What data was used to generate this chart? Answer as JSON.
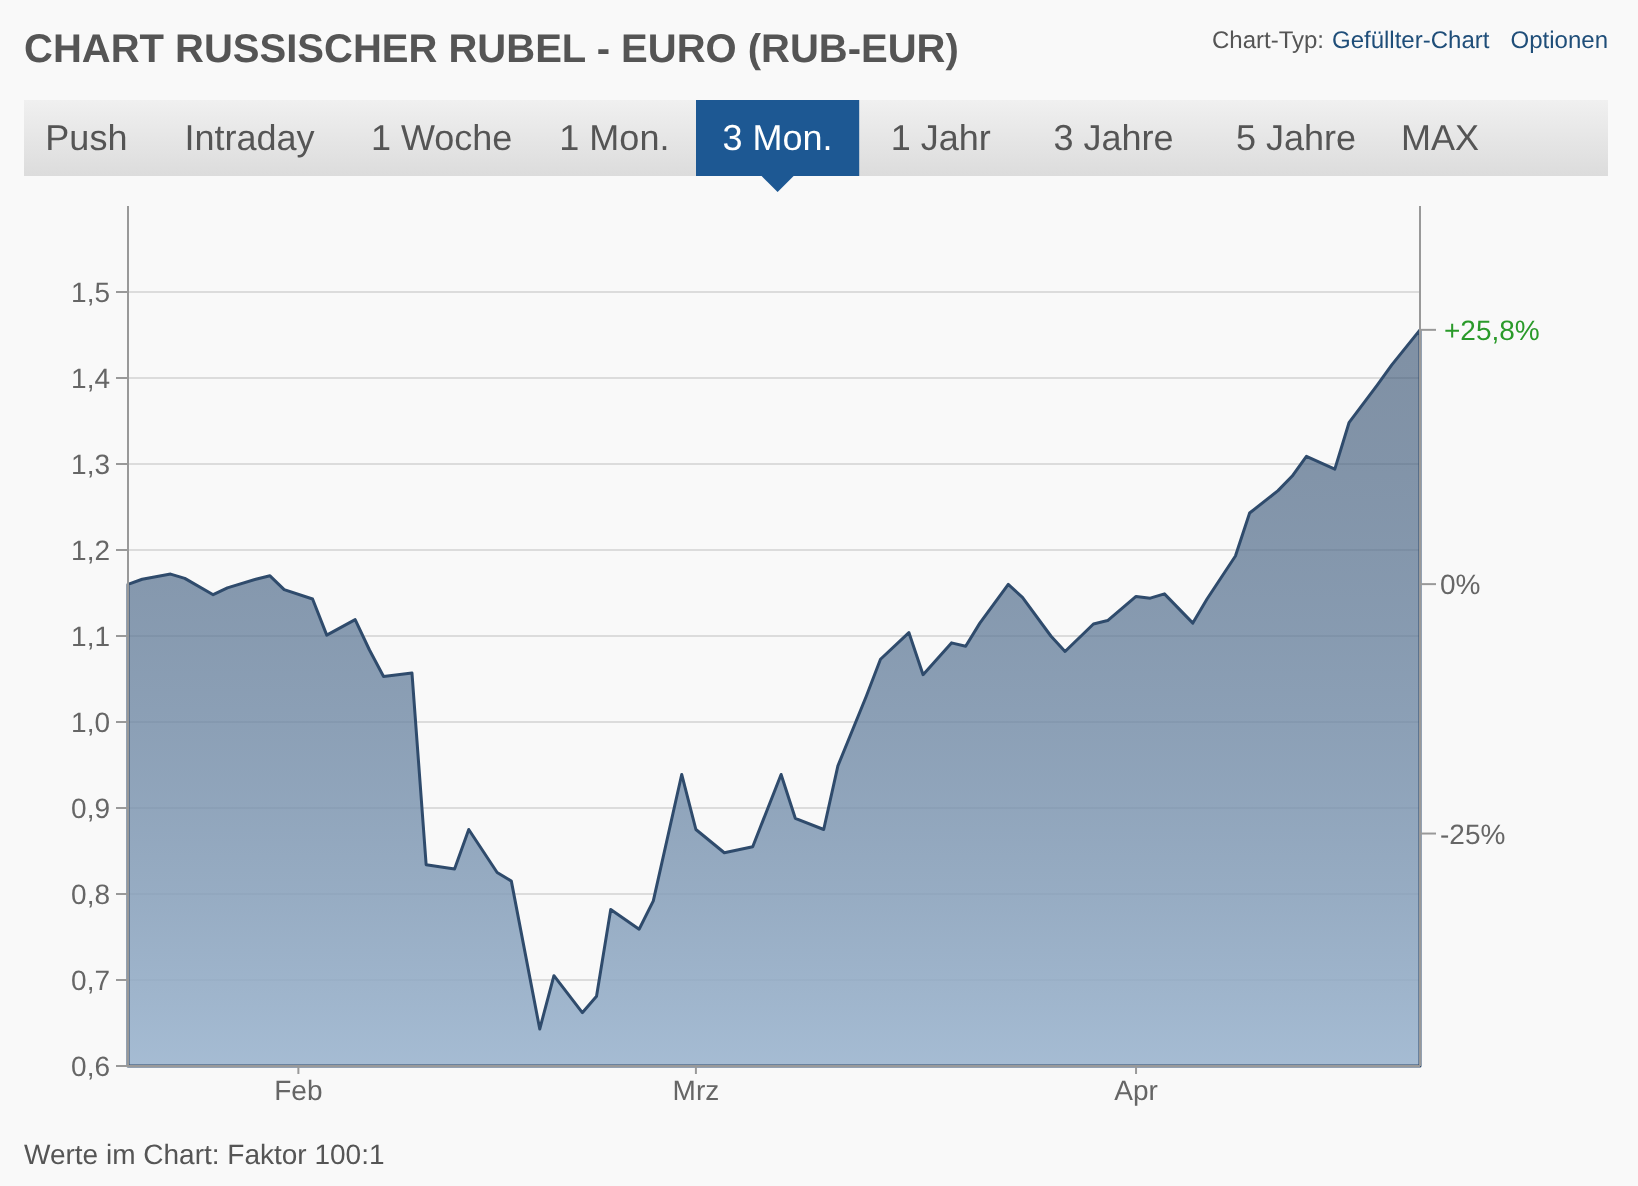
{
  "chart_data": {
    "type": "area",
    "title": "CHART RUSSISCHER RUBEL - EURO (RUB-EUR)",
    "annotations": [
      "Chart-Typ:",
      "Gefüllter-Chart",
      "Optionen",
      "Push",
      "Intraday",
      "1 Woche",
      "1 Mon.",
      "3 Mon.",
      "1 Jahr",
      "3 Jahre",
      "5 Jahre",
      "MAX",
      "Werte im Chart: Faktor 100:1",
      {
        "text": "+25,8%",
        "x": "--05-05",
        "y": 1.456
      }
    ],
    "x": [
      "--02-03",
      "--02-04",
      "--02-06",
      "--02-07",
      "--02-09",
      "--02-10",
      "--02-12",
      "--02-13",
      "--02-14",
      "--02-16",
      "--02-17",
      "--02-19",
      "--02-20",
      "--02-21",
      "--02-23",
      "--02-24",
      "--02-26",
      "--02-27",
      "--03-01",
      "--03-02",
      "--03-04",
      "--03-05",
      "--03-07",
      "--03-08",
      "--03-09",
      "--03-11",
      "--03-12",
      "--03-14",
      "--03-15",
      "--03-17",
      "--03-19",
      "--03-21",
      "--03-22",
      "--03-24",
      "--03-25",
      "--03-27",
      "--03-28",
      "--03-30",
      "--03-31",
      "--04-02",
      "--04-03",
      "--04-04",
      "--04-06",
      "--04-07",
      "--04-09",
      "--04-10",
      "--04-12",
      "--04-13",
      "--04-15",
      "--04-16",
      "--04-17",
      "--04-19",
      "--04-20",
      "--04-22",
      "--04-23",
      "--04-25",
      "--04-26",
      "--04-27",
      "--04-29",
      "--04-30",
      "--05-02",
      "--05-03",
      "--05-05"
    ],
    "series": [
      {
        "color": "#2f4b6c",
        "values": [
          1.16,
          1.166,
          1.172,
          1.167,
          1.148,
          1.156,
          1.166,
          1.17,
          1.154,
          1.143,
          1.101,
          1.119,
          1.084,
          1.053,
          1.057,
          0.834,
          0.829,
          0.875,
          0.825,
          0.815,
          0.643,
          0.705,
          0.662,
          0.681,
          0.782,
          0.759,
          0.792,
          0.939,
          0.875,
          0.848,
          0.855,
          0.939,
          0.888,
          0.875,
          0.949,
          1.03,
          1.073,
          1.104,
          1.055,
          1.092,
          1.088,
          1.115,
          1.16,
          1.145,
          1.1,
          1.082,
          1.114,
          1.118,
          1.146,
          1.144,
          1.149,
          1.115,
          1.143,
          1.193,
          1.243,
          1.269,
          1.286,
          1.309,
          1.294,
          1.348,
          1.392,
          1.415,
          1.456
        ]
      }
    ],
    "xlim": [
      "--02-03",
      "--05-05"
    ],
    "xticks": [
      {
        "value": "--02-15",
        "label": "Feb"
      },
      {
        "value": "--03-15",
        "label": "Mrz"
      },
      {
        "value": "--04-15",
        "label": "Apr"
      }
    ],
    "ylim": [
      0.6,
      1.6
    ],
    "yticks": [
      {
        "value": 0.6,
        "label": "0,6"
      },
      {
        "value": 0.7,
        "label": "0,7"
      },
      {
        "value": 0.8,
        "label": "0,8"
      },
      {
        "value": 0.9,
        "label": "0,9"
      },
      {
        "value": 1.0,
        "label": "1,0"
      },
      {
        "value": 1.1,
        "label": "1,1"
      },
      {
        "value": 1.2,
        "label": "1,2"
      },
      {
        "value": 1.3,
        "label": "1,3"
      },
      {
        "value": 1.4,
        "label": "1,4"
      },
      {
        "value": 1.5,
        "label": "1,5"
      }
    ],
    "y2lim": [
      -48.3,
      37.9
    ],
    "y2ticks": [
      {
        "value": 0,
        "label": "0%"
      },
      {
        "value": -25,
        "label": "-25%"
      }
    ],
    "grid": "y"
  }
}
